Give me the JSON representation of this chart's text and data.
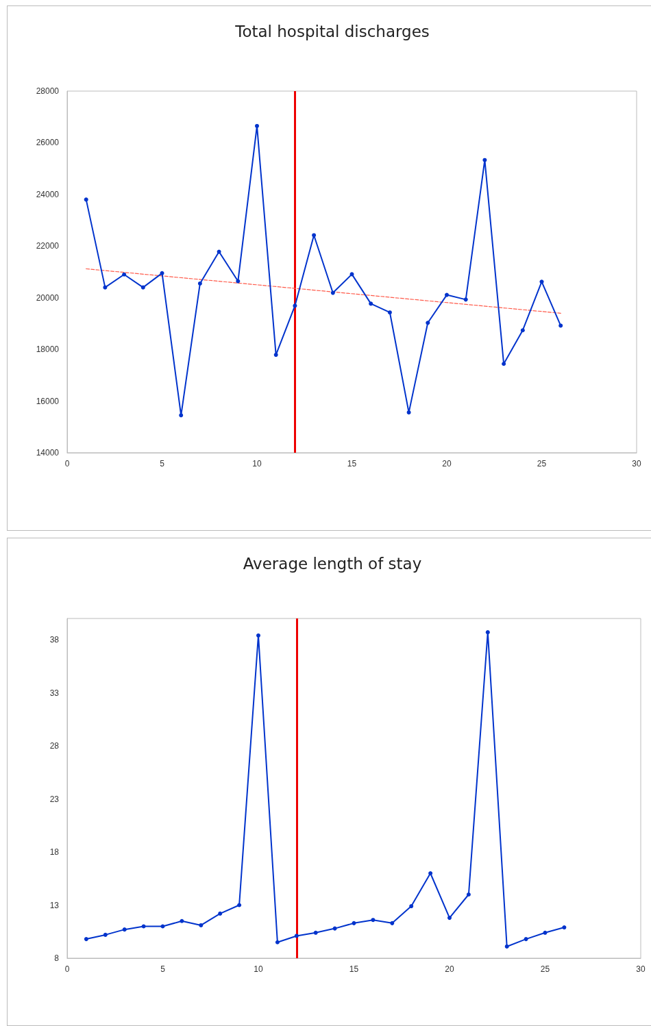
{
  "chart_data": [
    {
      "type": "line",
      "title": "Total hospital discharges",
      "x": [
        1,
        2,
        3,
        4,
        5,
        6,
        7,
        8,
        9,
        10,
        11,
        12,
        13,
        14,
        15,
        16,
        17,
        18,
        19,
        20,
        21,
        22,
        23,
        24,
        25,
        26
      ],
      "series": [
        {
          "color": "#0033cc",
          "values": [
            23800,
            20400,
            20900,
            20400,
            20950,
            15450,
            20550,
            21780,
            20640,
            26650,
            17790,
            19690,
            22420,
            20190,
            20910,
            19770,
            19430,
            15560,
            19030,
            20110,
            19930,
            25330,
            17440,
            18740,
            20620,
            18920
          ]
        },
        {
          "type": "line",
          "color": "#ff5a4a",
          "line_style": "dashed",
          "marker": "none",
          "x": [
            1,
            26
          ],
          "values": [
            21120,
            19400
          ]
        }
      ],
      "xlim": [
        0,
        30
      ],
      "xticks": [
        0,
        5,
        10,
        15,
        20,
        25,
        30
      ],
      "ylim": [
        14000,
        28000
      ],
      "yticks": [
        14000,
        16000,
        18000,
        20000,
        22000,
        24000,
        26000,
        28000
      ],
      "ref_lines": [
        {
          "axis": "x",
          "value": 12,
          "color": "#ee0000"
        }
      ],
      "marker": "circle",
      "line_style": "solid"
    },
    {
      "type": "line",
      "title": "Average length of stay",
      "x": [
        1,
        2,
        3,
        4,
        5,
        6,
        7,
        8,
        9,
        10,
        11,
        12,
        13,
        14,
        15,
        16,
        17,
        18,
        19,
        20,
        21,
        22,
        23,
        24,
        25,
        26
      ],
      "series": [
        {
          "color": "#0033cc",
          "values": [
            9.8,
            10.2,
            10.7,
            11.0,
            11.0,
            11.5,
            11.1,
            12.2,
            13.0,
            38.4,
            9.5,
            10.1,
            10.4,
            10.8,
            11.3,
            11.6,
            11.3,
            12.9,
            16.0,
            11.8,
            14.0,
            38.7,
            9.1,
            9.8,
            10.4,
            10.9
          ]
        }
      ],
      "xlim": [
        0,
        30
      ],
      "xticks": [
        0,
        5,
        10,
        15,
        20,
        25,
        30
      ],
      "ylim": [
        8,
        40
      ],
      "yticks": [
        8,
        13,
        18,
        23,
        28,
        33,
        38
      ],
      "ref_lines": [
        {
          "axis": "x",
          "value": 12,
          "color": "#ee0000"
        }
      ],
      "marker": "circle",
      "line_style": "solid"
    }
  ]
}
